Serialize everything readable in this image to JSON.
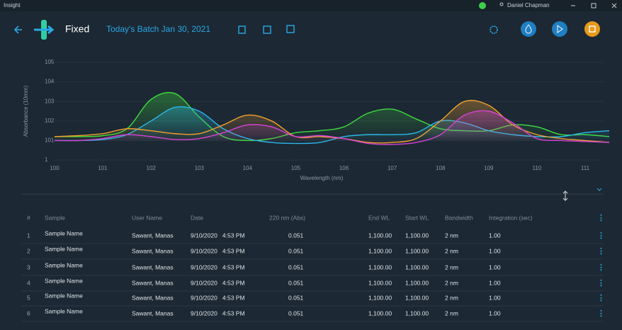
{
  "title_bar": {
    "app": "Insight",
    "user": "Daniel Chapman"
  },
  "header": {
    "mode": "Fixed",
    "batch": "Today's Batch Jan 30, 2021"
  },
  "chart_data": {
    "type": "line",
    "y_label": "Absorbance (10mm)",
    "x_label": "Wavelength (nm)",
    "xlim": [
      100,
      111.6
    ],
    "ylim": [
      100,
      105
    ],
    "xticks": [
      100,
      101,
      102,
      103,
      104,
      105,
      106,
      107,
      108,
      109,
      110,
      111
    ],
    "yticks": [
      {
        "value": 100,
        "label": "1"
      },
      101,
      102,
      103,
      104,
      105
    ],
    "grid": true,
    "x": [
      100,
      100.5,
      101,
      101.5,
      102,
      102.5,
      103,
      103.5,
      104,
      104.5,
      105,
      105.5,
      106,
      106.5,
      107,
      107.5,
      108,
      108.5,
      109,
      109.5,
      110,
      110.5,
      111,
      111.5
    ],
    "series": [
      {
        "color": "#3fdc3f",
        "values": [
          101.2,
          101.2,
          101.25,
          101.6,
          103.1,
          103.4,
          102.2,
          101.2,
          101.0,
          101.1,
          101.4,
          101.5,
          101.7,
          102.4,
          102.6,
          102.1,
          101.6,
          101.5,
          101.5,
          101.8,
          101.7,
          101.3,
          101.3,
          101.2
        ]
      },
      {
        "color": "#2bb8ea",
        "values": [
          101.0,
          101.0,
          101.05,
          101.3,
          102.0,
          102.7,
          102.5,
          101.6,
          101.1,
          100.9,
          100.85,
          100.9,
          101.2,
          101.3,
          101.3,
          101.4,
          102.0,
          101.9,
          101.5,
          101.3,
          101.2,
          101.2,
          101.4,
          101.5
        ]
      },
      {
        "color": "#f0a030",
        "values": [
          101.2,
          101.25,
          101.35,
          101.6,
          101.5,
          101.35,
          101.35,
          101.8,
          102.3,
          102.0,
          101.2,
          101.2,
          101.1,
          100.9,
          100.9,
          101.1,
          102.0,
          103.0,
          102.8,
          101.8,
          101.3,
          101.1,
          101.0,
          100.9
        ]
      },
      {
        "color": "#d444d4",
        "values": [
          101.0,
          101.0,
          101.1,
          101.3,
          101.2,
          101.05,
          101.1,
          101.4,
          101.8,
          101.7,
          101.2,
          101.25,
          101.1,
          100.85,
          100.8,
          100.9,
          101.3,
          102.3,
          102.5,
          101.9,
          101.1,
          101.0,
          100.95,
          100.9
        ]
      }
    ]
  },
  "table": {
    "columns": [
      "#",
      "Sample",
      "User Name",
      "Date",
      "220 nm (Abs)",
      "End WL",
      "Start WL",
      "Bandwidth",
      "Integration (sec)"
    ],
    "rows": [
      [
        "1",
        "Sample Name",
        "Sawant, Manas",
        "9/10/2020   4:53 PM",
        "0.051",
        "1,100.00",
        "1,100.00",
        "2 nm",
        "1.00"
      ],
      [
        "2",
        "Sample Name",
        "Sawant, Manas",
        "9/10/2020   4:53 PM",
        "0.051",
        "1,100.00",
        "1,100.00",
        "2 nm",
        "1.00"
      ],
      [
        "3",
        "Sample Name",
        "Sawant, Manas",
        "9/10/2020   4:53 PM",
        "0.051",
        "1,100.00",
        "1,100.00",
        "2 nm",
        "1.00"
      ],
      [
        "4",
        "Sample Name",
        "Sawant, Manas",
        "9/10/2020   4:53 PM",
        "0.051",
        "1,100.00",
        "1,100.00",
        "2 nm",
        "1.00"
      ],
      [
        "5",
        "Sample Name",
        "Sawant, Manas",
        "9/10/2020   4:53 PM",
        "0.051",
        "1,100.00",
        "1,100.00",
        "2 nm",
        "1.00"
      ],
      [
        "6",
        "Sample Name",
        "Sawant, Manas",
        "9/10/2020   4:53 PM",
        "0.051",
        "1,100.00",
        "1,100.00",
        "2 nm",
        "1.00"
      ]
    ]
  }
}
